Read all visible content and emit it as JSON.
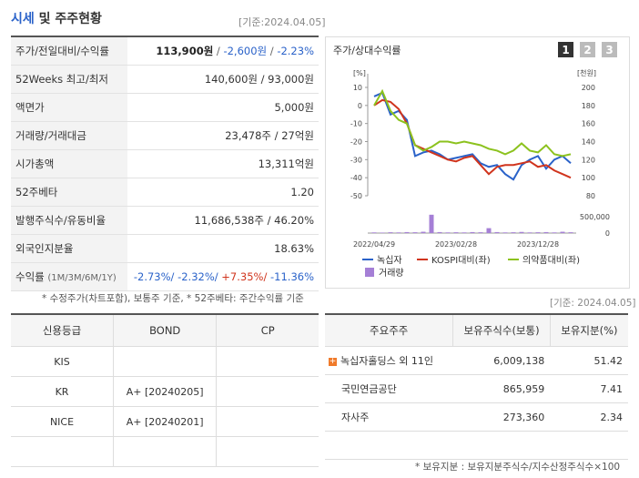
{
  "header": {
    "title_strong": "시세",
    "title_rest": "및 주주현황",
    "date": "[기준:2024.04.05]"
  },
  "quote_table": {
    "rows": [
      {
        "label": "주가/전일대비/수익률",
        "value": [
          {
            "text": "113,900원",
            "tone": "bold"
          },
          {
            "text": " / ",
            "tone": "sep"
          },
          {
            "text": "-2,600원",
            "tone": "blue"
          },
          {
            "text": " / ",
            "tone": "sep"
          },
          {
            "text": "-2.23%",
            "tone": "blue"
          }
        ]
      },
      {
        "label": "52Weeks 최고/최저",
        "value": [
          {
            "text": "140,600원 / 93,000원",
            "tone": "plain"
          }
        ]
      },
      {
        "label": "액면가",
        "value": [
          {
            "text": "5,000원",
            "tone": "plain"
          }
        ]
      },
      {
        "label": "거래량/거래대금",
        "value": [
          {
            "text": "23,478주 / 27억원",
            "tone": "plain"
          }
        ]
      },
      {
        "label": "시가총액",
        "value": [
          {
            "text": "13,311억원",
            "tone": "plain"
          }
        ]
      },
      {
        "label": "52주베타",
        "value": [
          {
            "text": "1.20",
            "tone": "plain"
          }
        ]
      },
      {
        "label": "발행주식수/유동비율",
        "value": [
          {
            "text": "11,686,538주 / 46.20%",
            "tone": "plain"
          }
        ]
      },
      {
        "label": "외국인지분율",
        "value": [
          {
            "text": "18.63%",
            "tone": "plain"
          }
        ]
      },
      {
        "label": "수익률",
        "label_note": "(1M/3M/6M/1Y)",
        "value": [
          {
            "text": "-2.73%/ ",
            "tone": "blue"
          },
          {
            "text": "-2.32%/ ",
            "tone": "blue"
          },
          {
            "text": "+7.35%/ ",
            "tone": "red"
          },
          {
            "text": "-11.36%",
            "tone": "blue"
          }
        ]
      }
    ],
    "note": "* 수정주가(차트포함), 보통주 기준, * 52주베타: 주간수익률 기준"
  },
  "chart_data": {
    "type": "line",
    "title": "주가/상대수익률",
    "buttons": [
      "1",
      "2",
      "3"
    ],
    "y_unit": "[%]",
    "y2_unit": "[천원]",
    "categories": [
      "2022/04/29",
      null,
      null,
      null,
      null,
      null,
      null,
      null,
      null,
      null,
      "2023/02/28",
      null,
      null,
      null,
      null,
      null,
      null,
      null,
      null,
      null,
      "2023/12/28",
      null,
      null,
      null,
      null
    ],
    "ylim": [
      -50,
      10
    ],
    "yticks": [
      10,
      0,
      -10,
      -20,
      -30,
      -40,
      -50
    ],
    "y2lim": [
      80,
      200
    ],
    "y2ticks": [
      200,
      180,
      160,
      140,
      120,
      100,
      80
    ],
    "series": [
      {
        "name": "녹십자",
        "color": "#2a62c9",
        "values": [
          5,
          7,
          -5,
          -3,
          -8,
          -28,
          -26,
          -25,
          -27,
          -30,
          -29,
          -28,
          -27,
          -32,
          -34,
          -33,
          -38,
          -41,
          -33,
          -30,
          -28,
          -35,
          -30,
          -28,
          -32
        ]
      },
      {
        "name": "KOSPI대비(좌)",
        "color": "#d0341d",
        "values": [
          0,
          3,
          2,
          -2,
          -10,
          -22,
          -24,
          -26,
          -28,
          -30,
          -31,
          -29,
          -28,
          -33,
          -38,
          -34,
          -33,
          -33,
          -32,
          -31,
          -34,
          -33,
          -36,
          -38,
          -40
        ]
      },
      {
        "name": "의약품대비(좌)",
        "color": "#8cc21e",
        "values": [
          0,
          8,
          -3,
          -8,
          -10,
          -22,
          -25,
          -23,
          -20,
          -20,
          -21,
          -20,
          -21,
          -22,
          -24,
          -25,
          -27,
          -25,
          -21,
          -25,
          -26,
          -22,
          -27,
          -28,
          -27
        ]
      }
    ],
    "volume": {
      "name": "거래량",
      "color": "#a57fd6",
      "values": [
        20000,
        15000,
        25000,
        20000,
        30000,
        25000,
        40000,
        560000,
        30000,
        20000,
        25000,
        20000,
        30000,
        25000,
        150000,
        30000,
        20000,
        25000,
        35000,
        20000,
        25000,
        30000,
        20000,
        40000,
        25000
      ],
      "lim": [
        0,
        500000
      ],
      "ticks": [
        {
          "value": 500000,
          "label": "500,000"
        },
        0
      ]
    }
  },
  "credit_table": {
    "headers": [
      "신용등급",
      "BOND",
      "CP"
    ],
    "rows": [
      [
        "KIS"
      ],
      [
        "KR",
        "A+  [20240205]"
      ],
      [
        "NICE",
        "A+  [20240201]"
      ]
    ]
  },
  "holder_table": {
    "date": "[기준: 2024.04.05]",
    "headers": [
      "주요주주",
      "보유주식수(보통)",
      "보유지분(%)"
    ],
    "rows": [
      [
        "녹십자홀딩스 외 11인",
        "6,009,138",
        "51.42"
      ],
      [
        "국민연금공단",
        "865,959",
        "7.41"
      ],
      [
        "자사주",
        "273,360",
        "2.34"
      ]
    ],
    "footnote": "* 보유지분 : 보유지분주식수/지수산정주식수×100"
  }
}
